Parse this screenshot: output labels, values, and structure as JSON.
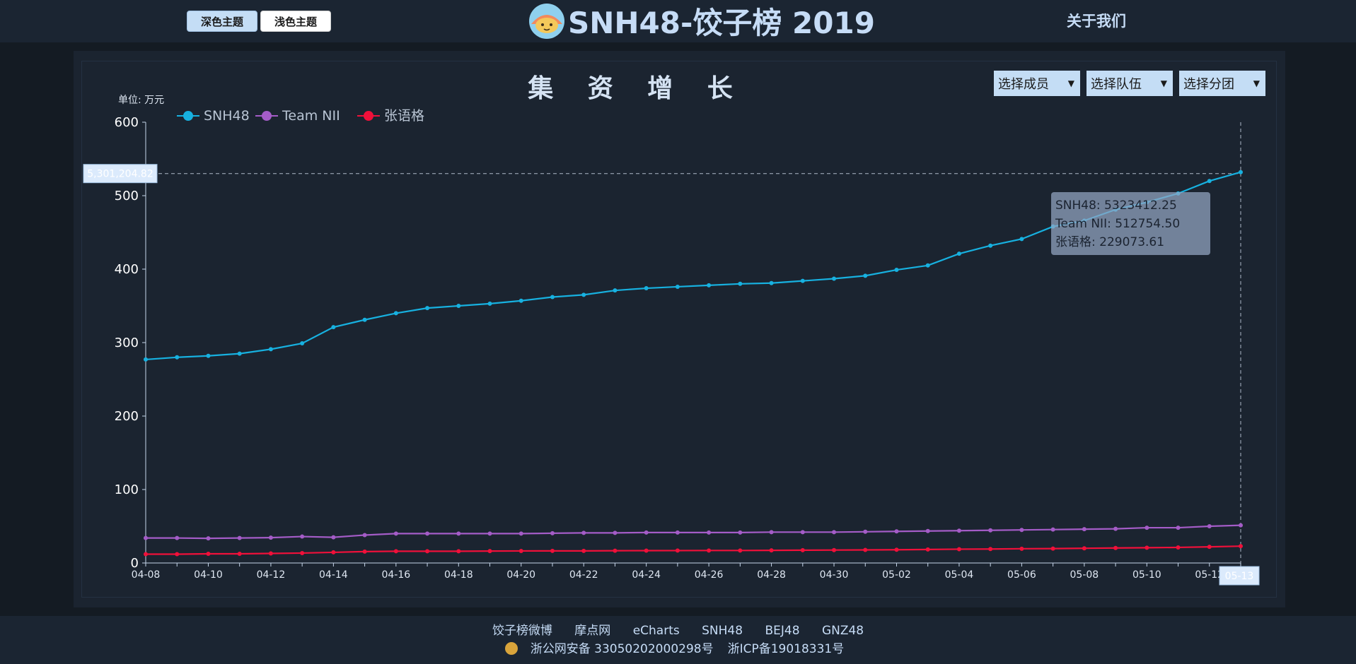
{
  "header": {
    "dark_theme_label": "深色主题",
    "light_theme_label": "浅色主题",
    "site_title": "SNH48-饺子榜 2019",
    "about_label": "关于我们"
  },
  "selects": {
    "member": "选择成员",
    "team": "选择队伍",
    "group": "选择分团"
  },
  "chart_data": {
    "type": "line",
    "title": "集 资 增 长",
    "unit_label": "单位: 万元",
    "xlabel": "",
    "ylabel": "",
    "ylim": [
      0,
      600
    ],
    "yticks": [
      0,
      100,
      200,
      300,
      400,
      500,
      600
    ],
    "legend_position": "top-left",
    "grid": false,
    "x": [
      "04-08",
      "04-09",
      "04-10",
      "04-11",
      "04-12",
      "04-13",
      "04-14",
      "04-15",
      "04-16",
      "04-17",
      "04-18",
      "04-19",
      "04-20",
      "04-21",
      "04-22",
      "04-23",
      "04-24",
      "04-25",
      "04-26",
      "04-27",
      "04-28",
      "04-29",
      "04-30",
      "05-01",
      "05-02",
      "05-03",
      "05-04",
      "05-05",
      "05-06",
      "05-07",
      "05-08",
      "05-09",
      "05-10",
      "05-11",
      "05-12",
      "05-13"
    ],
    "x_tick_labels": [
      "04-08",
      "04-10",
      "04-12",
      "04-14",
      "04-16",
      "04-18",
      "04-20",
      "04-22",
      "04-24",
      "04-26",
      "04-28",
      "04-30",
      "05-02",
      "05-04",
      "05-06",
      "05-08",
      "05-10",
      "05-12"
    ],
    "series": [
      {
        "name": "SNH48",
        "color": "#17b1e0",
        "values": [
          277,
          280,
          282,
          285,
          291,
          299,
          321,
          331,
          340,
          347,
          350,
          353,
          357,
          362,
          365,
          371,
          374,
          376,
          378,
          380,
          381,
          384,
          387,
          391,
          399,
          405,
          421,
          432,
          441,
          458,
          466,
          481,
          491,
          503,
          520,
          532
        ]
      },
      {
        "name": "Team NII",
        "color": "#a45cc7",
        "values": [
          34,
          34,
          33.5,
          34,
          34.5,
          36,
          35,
          38,
          40,
          40,
          40,
          40,
          40,
          40.5,
          41,
          41,
          41.5,
          41.5,
          41.5,
          41.5,
          42,
          42,
          42,
          42.5,
          43,
          43.5,
          44,
          44.5,
          45,
          45.5,
          46,
          46.5,
          48,
          48,
          50,
          51.3
        ]
      },
      {
        "name": "张语格",
        "color": "#f0103a",
        "values": [
          12,
          12,
          12.5,
          12.5,
          13,
          13.5,
          14.5,
          15.5,
          16,
          16,
          16,
          16.2,
          16.4,
          16.5,
          16.5,
          16.7,
          16.8,
          16.9,
          17,
          17,
          17.2,
          17.4,
          17.6,
          17.8,
          18,
          18.4,
          18.8,
          19,
          19.4,
          19.6,
          20,
          20.4,
          20.8,
          21.2,
          22,
          22.9
        ]
      }
    ],
    "crosshair": {
      "y_label": "5,301,204.82",
      "y_value": 530.1,
      "x_label": "05-13"
    },
    "tooltip": {
      "lines": [
        "SNH48: 5323412.25",
        "Team NII: 512754.50",
        "张语格: 229073.61"
      ]
    }
  },
  "footer": {
    "links": [
      "饺子榜微博",
      "摩点网",
      "eCharts",
      "SNH48",
      "BEJ48",
      "GNZ48"
    ],
    "police_reg": "浙公网安备 33050202000298号",
    "icp_reg": "浙ICP备19018331号"
  }
}
